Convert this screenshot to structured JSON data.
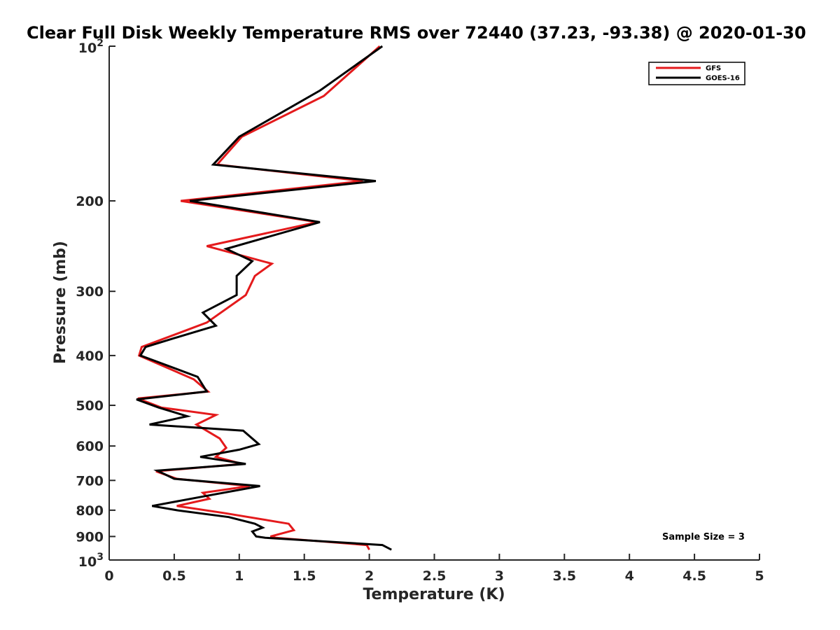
{
  "chart_data": {
    "type": "line",
    "title": "Clear Full Disk Weekly Temperature RMS over 72440 (37.23, -93.38) @ 2020-01-30",
    "xlabel": "Temperature (K)",
    "ylabel": "Pressure (mb)",
    "xlim": [
      0,
      5
    ],
    "ylim": [
      1000,
      100
    ],
    "yscale": "log",
    "x_ticks": [
      0,
      0.5,
      1,
      1.5,
      2,
      2.5,
      3,
      3.5,
      4,
      4.5,
      5
    ],
    "x_tick_labels": [
      "0",
      "0.5",
      "1",
      "1.5",
      "2",
      "2.5",
      "3",
      "3.5",
      "4",
      "4.5",
      "5"
    ],
    "y_ticks": [
      {
        "value": 100,
        "base": "10",
        "exp": "2"
      },
      {
        "value": 200,
        "label": "200"
      },
      {
        "value": 300,
        "label": "300"
      },
      {
        "value": 400,
        "label": "400"
      },
      {
        "value": 500,
        "label": "500"
      },
      {
        "value": 600,
        "label": "600"
      },
      {
        "value": 700,
        "label": "700"
      },
      {
        "value": 800,
        "label": "800"
      },
      {
        "value": 900,
        "label": "900"
      },
      {
        "value": 1000,
        "base": "10",
        "exp": "3"
      }
    ],
    "legend_position": "top-right",
    "grid": false,
    "annotation": "Sample Size = 3",
    "series": [
      {
        "name": "GFS",
        "color": "#e41a1c",
        "points": [
          [
            2.08,
            100
          ],
          [
            1.65,
            125
          ],
          [
            1.02,
            150
          ],
          [
            0.83,
            170
          ],
          [
            1.95,
            183
          ],
          [
            0.55,
            200
          ],
          [
            1.6,
            220
          ],
          [
            0.75,
            245
          ],
          [
            1.25,
            265
          ],
          [
            1.12,
            280
          ],
          [
            1.05,
            305
          ],
          [
            0.75,
            345
          ],
          [
            0.25,
            385
          ],
          [
            0.23,
            400
          ],
          [
            0.65,
            445
          ],
          [
            0.76,
            470
          ],
          [
            0.22,
            485
          ],
          [
            0.4,
            505
          ],
          [
            0.82,
            522
          ],
          [
            0.67,
            545
          ],
          [
            0.85,
            580
          ],
          [
            0.9,
            605
          ],
          [
            0.82,
            630
          ],
          [
            1.02,
            650
          ],
          [
            0.36,
            672
          ],
          [
            0.52,
            695
          ],
          [
            1.08,
            718
          ],
          [
            0.72,
            740
          ],
          [
            0.77,
            760
          ],
          [
            0.52,
            785
          ],
          [
            0.88,
            810
          ],
          [
            1.38,
            850
          ],
          [
            1.42,
            875
          ],
          [
            1.24,
            900
          ],
          [
            1.28,
            905
          ],
          [
            1.98,
            935
          ],
          [
            2.0,
            955
          ]
        ]
      },
      {
        "name": "GOES-16",
        "color": "#000000",
        "points": [
          [
            2.1,
            100
          ],
          [
            1.62,
            122
          ],
          [
            1.0,
            150
          ],
          [
            0.8,
            170
          ],
          [
            2.05,
            183
          ],
          [
            0.62,
            200
          ],
          [
            1.62,
            220
          ],
          [
            0.9,
            248
          ],
          [
            1.1,
            262
          ],
          [
            0.98,
            280
          ],
          [
            0.98,
            305
          ],
          [
            0.72,
            330
          ],
          [
            0.82,
            350
          ],
          [
            0.5,
            370
          ],
          [
            0.28,
            385
          ],
          [
            0.24,
            400
          ],
          [
            0.68,
            440
          ],
          [
            0.75,
            470
          ],
          [
            0.21,
            487
          ],
          [
            0.38,
            505
          ],
          [
            0.6,
            525
          ],
          [
            0.31,
            545
          ],
          [
            1.03,
            560
          ],
          [
            1.15,
            595
          ],
          [
            1.0,
            610
          ],
          [
            0.7,
            630
          ],
          [
            1.05,
            650
          ],
          [
            0.37,
            670
          ],
          [
            0.5,
            695
          ],
          [
            1.16,
            718
          ],
          [
            0.75,
            750
          ],
          [
            0.33,
            785
          ],
          [
            0.52,
            800
          ],
          [
            0.92,
            825
          ],
          [
            1.12,
            850
          ],
          [
            1.18,
            865
          ],
          [
            1.1,
            880
          ],
          [
            1.13,
            900
          ],
          [
            1.2,
            905
          ],
          [
            2.1,
            935
          ],
          [
            2.17,
            955
          ]
        ]
      }
    ]
  }
}
